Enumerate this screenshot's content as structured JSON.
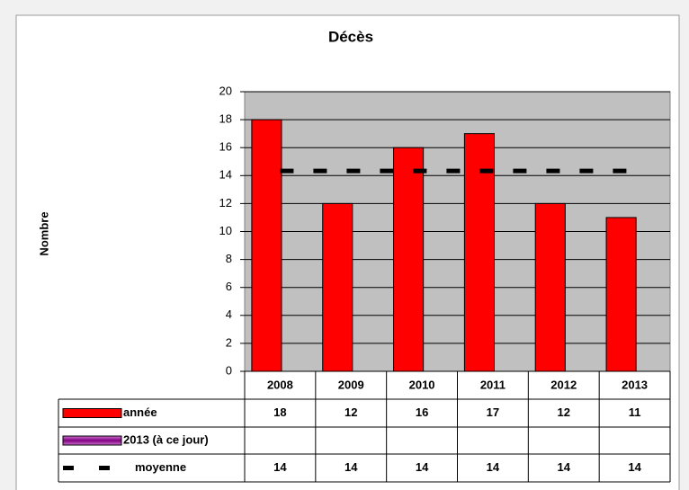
{
  "chart_data": {
    "type": "bar",
    "title": "Décès",
    "y_label": "Nombre",
    "categories": [
      "2008",
      "2009",
      "2010",
      "2011",
      "2012",
      "2013"
    ],
    "series": [
      {
        "name": "année",
        "color": "#ff0000",
        "values": [
          18,
          12,
          16,
          17,
          12,
          11
        ]
      },
      {
        "name": "2013 (à ce jour)",
        "color": "#800080",
        "values": [
          null,
          null,
          null,
          null,
          null,
          null
        ]
      },
      {
        "name": "moyenne",
        "type": "line",
        "color": "#000000",
        "values": [
          14.33,
          14.33,
          14.33,
          14.33,
          14.33,
          14.33
        ],
        "value_labels": [
          "14",
          "14",
          "14",
          "14",
          "14",
          "14"
        ]
      }
    ],
    "ylim": [
      0,
      20
    ],
    "yticks": [
      0,
      2,
      4,
      6,
      8,
      10,
      12,
      14,
      16,
      18,
      20
    ],
    "grid": true
  }
}
